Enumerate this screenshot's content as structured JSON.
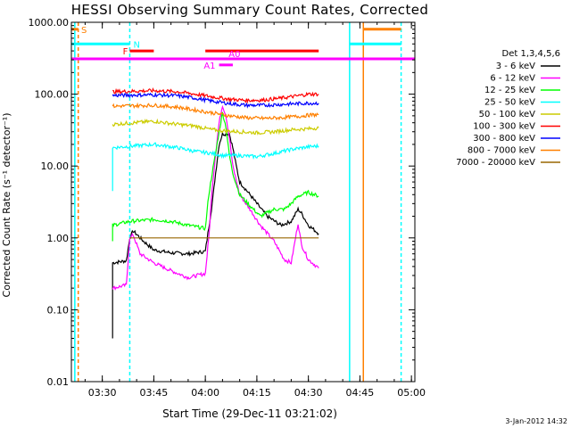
{
  "chart_data": {
    "type": "line",
    "title": "HESSI Observing Summary Count Rates, Corrected",
    "xlabel": "Start Time (29-Dec-11 03:21:02)",
    "ylabel": "Corrected Count Rate (s⁻¹ detector⁻¹)",
    "yscale": "log",
    "ylim": [
      0.01,
      1000
    ],
    "xlim": [
      "03:21",
      "05:01"
    ],
    "x_tick_labels": [
      "03:30",
      "03:45",
      "04:00",
      "04:15",
      "04:30",
      "04:45",
      "05:00"
    ],
    "y_tick_labels": [
      "0.01",
      "0.10",
      "1.00",
      "10.00",
      "100.00",
      "1000.00"
    ],
    "legend_title": "Det 1,3,4,5,6",
    "legend_placement": "right, outside plot",
    "grid": false,
    "series": [
      {
        "name": "3 - 6 keV",
        "color": "#000000",
        "points": [
          [
            "03:33",
            0.04
          ],
          [
            "03:33",
            0.45
          ],
          [
            "03:37",
            0.48
          ],
          [
            "03:38",
            1.0
          ],
          [
            "03:39",
            1.25
          ],
          [
            "03:42",
            0.9
          ],
          [
            "03:45",
            0.68
          ],
          [
            "03:50",
            0.62
          ],
          [
            "03:55",
            0.6
          ],
          [
            "04:00",
            0.65
          ],
          [
            "04:02",
            3.0
          ],
          [
            "04:03",
            8.0
          ],
          [
            "04:04",
            20
          ],
          [
            "04:05",
            28
          ],
          [
            "04:07",
            28
          ],
          [
            "04:08",
            18
          ],
          [
            "04:09",
            10
          ],
          [
            "04:10",
            6
          ],
          [
            "04:13",
            4
          ],
          [
            "04:15",
            3
          ],
          [
            "04:18",
            2.0
          ],
          [
            "04:22",
            1.5
          ],
          [
            "04:25",
            1.7
          ],
          [
            "04:27",
            2.5
          ],
          [
            "04:28",
            2.2
          ],
          [
            "04:30",
            1.5
          ],
          [
            "04:33",
            1.15
          ]
        ]
      },
      {
        "name": "6 - 12 keV",
        "color": "#ff00ff",
        "points": [
          [
            "03:33",
            0.2
          ],
          [
            "03:37",
            0.22
          ],
          [
            "03:38",
            1.0
          ],
          [
            "03:39",
            1.1
          ],
          [
            "03:41",
            0.6
          ],
          [
            "03:45",
            0.45
          ],
          [
            "03:50",
            0.35
          ],
          [
            "03:55",
            0.28
          ],
          [
            "04:00",
            0.32
          ],
          [
            "04:01",
            1.0
          ],
          [
            "04:02",
            5
          ],
          [
            "04:03",
            15
          ],
          [
            "04:04",
            40
          ],
          [
            "04:05",
            70
          ],
          [
            "04:06",
            50
          ],
          [
            "04:07",
            25
          ],
          [
            "04:08",
            10
          ],
          [
            "04:10",
            4
          ],
          [
            "04:13",
            2.5
          ],
          [
            "04:16",
            1.5
          ],
          [
            "04:20",
            0.9
          ],
          [
            "04:23",
            0.5
          ],
          [
            "04:25",
            0.45
          ],
          [
            "04:27",
            1.6
          ],
          [
            "04:28",
            0.8
          ],
          [
            "04:30",
            0.5
          ],
          [
            "04:33",
            0.38
          ]
        ]
      },
      {
        "name": "12 - 25 keV",
        "color": "#00ff00",
        "points": [
          [
            "03:33",
            0.9
          ],
          [
            "03:33",
            1.5
          ],
          [
            "03:38",
            1.7
          ],
          [
            "03:45",
            1.8
          ],
          [
            "03:50",
            1.7
          ],
          [
            "03:55",
            1.5
          ],
          [
            "04:00",
            1.35
          ],
          [
            "04:01",
            4
          ],
          [
            "04:02",
            8
          ],
          [
            "04:03",
            15
          ],
          [
            "04:04",
            30
          ],
          [
            "04:05",
            55
          ],
          [
            "04:06",
            35
          ],
          [
            "04:07",
            14
          ],
          [
            "04:08",
            8
          ],
          [
            "04:10",
            4
          ],
          [
            "04:13",
            2.8
          ],
          [
            "04:16",
            2.0
          ],
          [
            "04:20",
            2.5
          ],
          [
            "04:23",
            2.5
          ],
          [
            "04:25",
            3.0
          ],
          [
            "04:27",
            3.8
          ],
          [
            "04:30",
            4.3
          ],
          [
            "04:33",
            3.8
          ]
        ]
      },
      {
        "name": "25 - 50 keV",
        "color": "#00ffff",
        "points": [
          [
            "03:33",
            4.5
          ],
          [
            "03:33",
            18
          ],
          [
            "03:45",
            20
          ],
          [
            "03:52",
            18
          ],
          [
            "03:57",
            16
          ],
          [
            "04:02",
            15
          ],
          [
            "04:05",
            14
          ],
          [
            "04:10",
            14
          ],
          [
            "04:15",
            13.5
          ],
          [
            "04:20",
            15
          ],
          [
            "04:25",
            17
          ],
          [
            "04:30",
            18.5
          ],
          [
            "04:33",
            19
          ]
        ]
      },
      {
        "name": "50 - 100 keV",
        "color": "#cccc00",
        "points": [
          [
            "03:33",
            38
          ],
          [
            "03:45",
            42
          ],
          [
            "03:52",
            38
          ],
          [
            "03:57",
            36
          ],
          [
            "04:02",
            32
          ],
          [
            "04:05",
            31
          ],
          [
            "04:10",
            30
          ],
          [
            "04:15",
            29
          ],
          [
            "04:20",
            30
          ],
          [
            "04:25",
            32
          ],
          [
            "04:30",
            33
          ],
          [
            "04:33",
            34
          ]
        ]
      },
      {
        "name": "100 - 300 keV",
        "color": "#ff0000",
        "points": [
          [
            "03:33",
            108
          ],
          [
            "03:45",
            112
          ],
          [
            "03:52",
            108
          ],
          [
            "03:57",
            100
          ],
          [
            "04:02",
            92
          ],
          [
            "04:07",
            85
          ],
          [
            "04:12",
            82
          ],
          [
            "04:17",
            83
          ],
          [
            "04:22",
            88
          ],
          [
            "04:27",
            95
          ],
          [
            "04:30",
            100
          ],
          [
            "04:33",
            100
          ]
        ]
      },
      {
        "name": "300 - 800 keV",
        "color": "#0000ff",
        "points": [
          [
            "03:33",
            96
          ],
          [
            "03:45",
            98
          ],
          [
            "03:52",
            95
          ],
          [
            "03:57",
            88
          ],
          [
            "04:02",
            80
          ],
          [
            "04:07",
            74
          ],
          [
            "04:12",
            70
          ],
          [
            "04:17",
            70
          ],
          [
            "04:22",
            72
          ],
          [
            "04:27",
            74
          ],
          [
            "04:30",
            75
          ],
          [
            "04:33",
            75
          ]
        ]
      },
      {
        "name": "800 - 7000 keV",
        "color": "#ff8000",
        "points": [
          [
            "03:33",
            68
          ],
          [
            "03:45",
            70
          ],
          [
            "03:52",
            66
          ],
          [
            "03:57",
            60
          ],
          [
            "04:02",
            55
          ],
          [
            "04:07",
            50
          ],
          [
            "04:12",
            47
          ],
          [
            "04:17",
            46
          ],
          [
            "04:22",
            47
          ],
          [
            "04:27",
            49
          ],
          [
            "04:30",
            51
          ],
          [
            "04:33",
            52
          ]
        ]
      },
      {
        "name": "7000 - 20000 keV",
        "color": "#996600",
        "points": [
          [
            "03:38",
            1.0
          ],
          [
            "03:58",
            1.0
          ],
          [
            "04:24",
            1.0
          ],
          [
            "04:33",
            1.0
          ]
        ]
      }
    ],
    "flags": [
      {
        "label": "S",
        "color": "#ff8000",
        "level": 800,
        "intervals": [
          [
            "03:21",
            "03:23"
          ],
          [
            "04:46",
            "04:57"
          ]
        ]
      },
      {
        "label": "N",
        "color": "#00ffff",
        "level": 500,
        "intervals": [
          [
            "03:21",
            "03:38"
          ],
          [
            "04:42",
            "04:57"
          ]
        ]
      },
      {
        "label": "F",
        "color": "#ff0000",
        "level": 400,
        "intervals": [
          [
            "03:38",
            "03:45"
          ],
          [
            "04:00",
            "04:33"
          ]
        ]
      },
      {
        "label": "A0",
        "color": "#ff00ff",
        "level": 310,
        "intervals": [
          [
            "03:21",
            "05:01"
          ]
        ]
      },
      {
        "label": "A1",
        "color": "#ff00ff",
        "level": 255,
        "intervals": [
          [
            "04:04",
            "04:08"
          ]
        ]
      }
    ],
    "vertical_markers": [
      {
        "time": "03:22",
        "color": "#00ffff",
        "style": "solid"
      },
      {
        "time": "03:23",
        "color": "#ff8000",
        "style": "dashed"
      },
      {
        "time": "03:38",
        "color": "#00ffff",
        "style": "dashed"
      },
      {
        "time": "04:42",
        "color": "#00ffff",
        "style": "solid"
      },
      {
        "time": "04:46",
        "color": "#ff8000",
        "style": "solid"
      },
      {
        "time": "04:57",
        "color": "#00ffff",
        "style": "dashed"
      }
    ]
  },
  "footer": {
    "timestamp": "3-Jan-2012 14:32"
  }
}
